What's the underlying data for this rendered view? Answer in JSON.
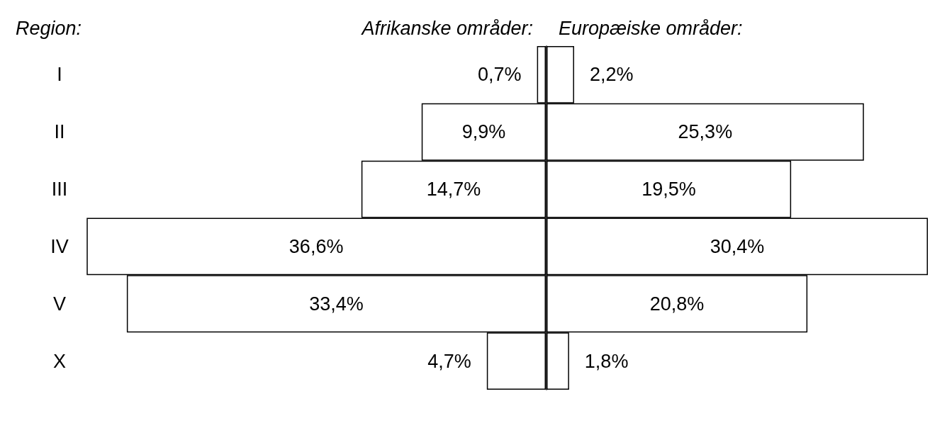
{
  "chart_data": [
    {
      "type": "bar",
      "orientation": "horizontal",
      "ylabel": "Region:",
      "categories": [
        "I",
        "II",
        "III",
        "IV",
        "V",
        "X"
      ],
      "tick_labels": "y",
      "grid": false,
      "legend": false,
      "series": [
        {
          "name": "Afrikanske områder:",
          "color": "#ffffff",
          "values": [
            0.7,
            9.9,
            14.7,
            36.6,
            33.4,
            4.7
          ],
          "value_labels": [
            "0,7%",
            "9,9%",
            "14,7%",
            "36,6%",
            "33,4%",
            "4,7%"
          ]
        }
      ]
    },
    {
      "type": "bar",
      "orientation": "horizontal",
      "categories": [
        null,
        null,
        null,
        null,
        null,
        null
      ],
      "tick_labels": false,
      "grid": false,
      "legend": false,
      "series": [
        {
          "name": "Europæiske områder:",
          "color": "#ffffff",
          "values": [
            2.2,
            25.3,
            19.5,
            30.4,
            20.8,
            1.8
          ],
          "value_labels": [
            "2,2%",
            "25,3%",
            "19,5%",
            "30,4%",
            "20,8%",
            "1,8%"
          ]
        }
      ]
    }
  ]
}
